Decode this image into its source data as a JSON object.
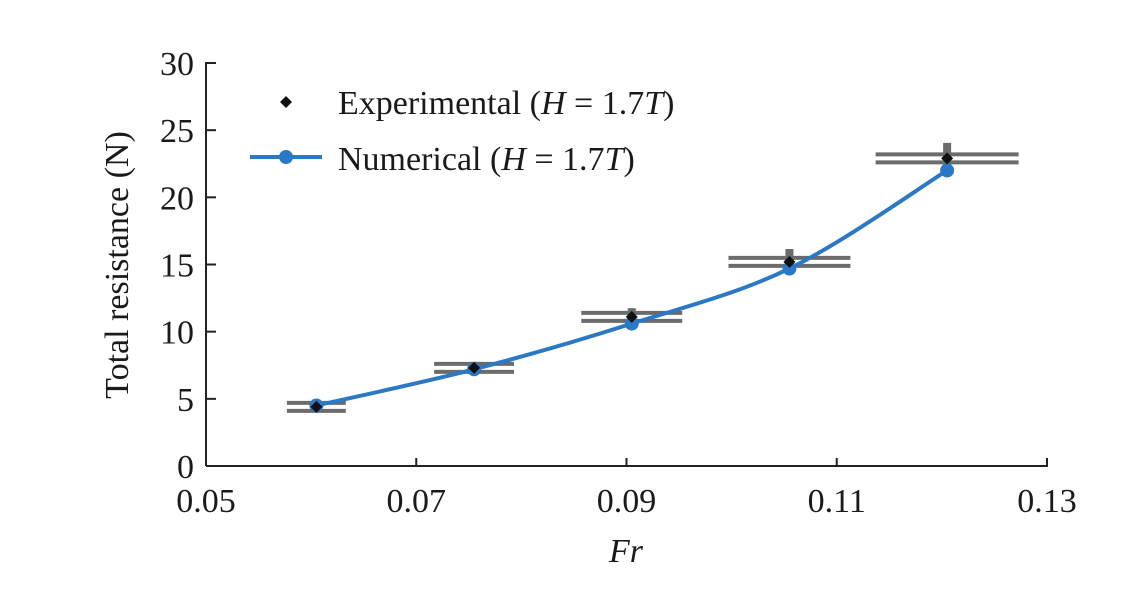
{
  "chart_data": {
    "type": "line",
    "xlabel": "Fr",
    "ylabel": "Total resistance (N)",
    "xlim": [
      0.05,
      0.13
    ],
    "ylim": [
      0,
      30
    ],
    "x_ticks": [
      0.05,
      0.07,
      0.09,
      0.11,
      0.13
    ],
    "x_tick_labels": [
      "0.05",
      "0.07",
      "0.09",
      "0.11",
      "0.13"
    ],
    "y_ticks": [
      0,
      5,
      10,
      15,
      20,
      25,
      30
    ],
    "y_tick_labels": [
      "0",
      "5",
      "10",
      "15",
      "20",
      "25",
      "30"
    ],
    "legend_position": "top-left",
    "series": [
      {
        "name": "Experimental (H = 1.7T)",
        "kind": "scatter",
        "marker": "diamond",
        "color": "#111111",
        "x": [
          0.0605,
          0.0755,
          0.0905,
          0.1055,
          0.1205
        ],
        "y": [
          4.4,
          7.3,
          11.1,
          15.2,
          22.9
        ],
        "y_err": [
          0.35,
          0.45,
          0.65,
          0.95,
          1.15
        ],
        "x_err": [
          0.0028,
          0.0038,
          0.0048,
          0.0058,
          0.0068
        ]
      },
      {
        "name": "Numerical (H = 1.7T)",
        "kind": "line",
        "marker": "circle",
        "color": "#2b78c4",
        "x": [
          0.0605,
          0.0755,
          0.0905,
          0.1055,
          0.1205
        ],
        "y": [
          4.5,
          7.2,
          10.6,
          14.7,
          22.0
        ]
      }
    ],
    "legend": [
      {
        "label_prefix": "Experimental (",
        "label_var": "H",
        "label_mid": " = 1.7",
        "label_var2": "T",
        "label_suffix": ")"
      },
      {
        "label_prefix": "Numerical (",
        "label_var": "H",
        "label_mid": " = 1.7",
        "label_var2": "T",
        "label_suffix": ")"
      }
    ]
  }
}
